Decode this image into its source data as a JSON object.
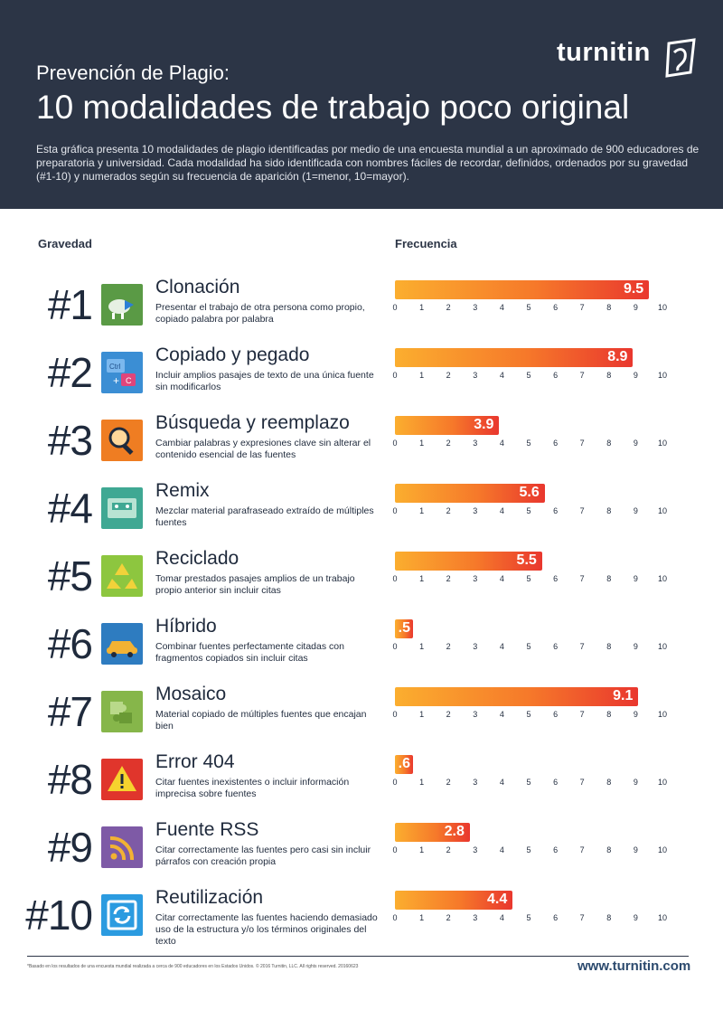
{
  "header": {
    "brand": "turnitin",
    "pre_title": "Prevención de Plagio:",
    "title": "10 modalidades de trabajo poco original",
    "description": "Esta gráfica presenta 10 modalidades de plagio identificadas por medio de una encuesta mundial a un aproximado de 900 educadores de preparatoria y universidad. Cada modalidad ha sido identificada con nombres fáciles de recordar, definidos, ordenados por su gravedad (#1-10) y numerados según su frecuencia de aparición (1=menor, 10=mayor)."
  },
  "columns": {
    "severity": "Gravedad",
    "frequency": "Frecuencia"
  },
  "colors": {
    "header_bg": "#2c3546",
    "bar_start": "#fbae2f",
    "bar_end": "#e9372e"
  },
  "modalities": [
    {
      "rank": "#1",
      "name": "Clonación",
      "description": "Presentar el trabajo de otra persona como propio, copiado palabra por palabra",
      "value_label": "9.5",
      "icon": "sheep-icon",
      "icon_color": "#5a9a45"
    },
    {
      "rank": "#2",
      "name": "Copiado y pegado",
      "description": "Incluir amplios pasajes de texto de una única fuente sin modificarlos",
      "value_label": "8.9",
      "icon": "ctrl-c-icon",
      "icon_color": "#3b8ed4"
    },
    {
      "rank": "#3",
      "name": "Búsqueda y reemplazo",
      "description": "Cambiar palabras y expresiones clave sin alterar el contenido esencial de las fuentes",
      "value_label": "3.9",
      "icon": "magnifier-icon",
      "icon_color": "#ef7d22"
    },
    {
      "rank": "#4",
      "name": "Remix",
      "description": "Mezclar material parafraseado extraído de múltiples fuentes",
      "value_label": "5.6",
      "icon": "cassette-icon",
      "icon_color": "#3fa893"
    },
    {
      "rank": "#5",
      "name": "Reciclado",
      "description": "Tomar prestados pasajes amplios de un trabajo propio anterior sin incluir citas",
      "value_label": "5.5",
      "icon": "recycle-icon",
      "icon_color": "#8dc63f"
    },
    {
      "rank": "#6",
      "name": "Híbrido",
      "description": "Combinar fuentes perfectamente citadas con fragmentos copiados sin incluir citas",
      "value_label": ".5",
      "icon": "car-icon",
      "icon_color": "#2e7cc0"
    },
    {
      "rank": "#7",
      "name": "Mosaico",
      "description": "Material copiado de múltiples fuentes que encajan bien",
      "value_label": "9.1",
      "icon": "puzzle-icon",
      "icon_color": "#86b64a"
    },
    {
      "rank": "#8",
      "name": "Error 404",
      "description": "Citar fuentes inexistentes o incluir información imprecisa sobre fuentes",
      "value_label": ".6",
      "icon": "warning-icon",
      "icon_color": "#e0352c"
    },
    {
      "rank": "#9",
      "name": "Fuente RSS",
      "description": "Citar correctamente las fuentes pero casi sin incluir párrafos con creación propia",
      "value_label": "2.8",
      "icon": "rss-icon",
      "icon_color": "#7e5aa6"
    },
    {
      "rank": "#10",
      "name": "Reutilización",
      "description": "Citar correctamente las fuentes haciendo demasiado uso de la estructura y/o los términos originales del texto",
      "value_label": "4.4",
      "icon": "refresh-icon",
      "icon_color": "#2b9be0"
    }
  ],
  "chart_data": {
    "type": "bar",
    "orientation": "horizontal",
    "categories": [
      "Clonación",
      "Copiado y pegado",
      "Búsqueda y reemplazo",
      "Remix",
      "Reciclado",
      "Híbrido",
      "Mosaico",
      "Error 404",
      "Fuente RSS",
      "Reutilización"
    ],
    "values": [
      9.5,
      8.9,
      3.9,
      5.6,
      5.5,
      0.5,
      9.1,
      0.6,
      2.8,
      4.4
    ],
    "xlim": [
      0,
      10
    ],
    "ticks": [
      "0",
      "1",
      "2",
      "3",
      "4",
      "5",
      "6",
      "7",
      "8",
      "9",
      "10"
    ],
    "grid": false,
    "legend": "none"
  },
  "footer": {
    "note": "*Basado en los resultados de una encuesta mundial realizada a cerca de 900 educadores en los Estados Unidos.  © 2016 Turnitin, LLC. All rights reserved.  20160623",
    "website": "www.turnitin.com"
  }
}
